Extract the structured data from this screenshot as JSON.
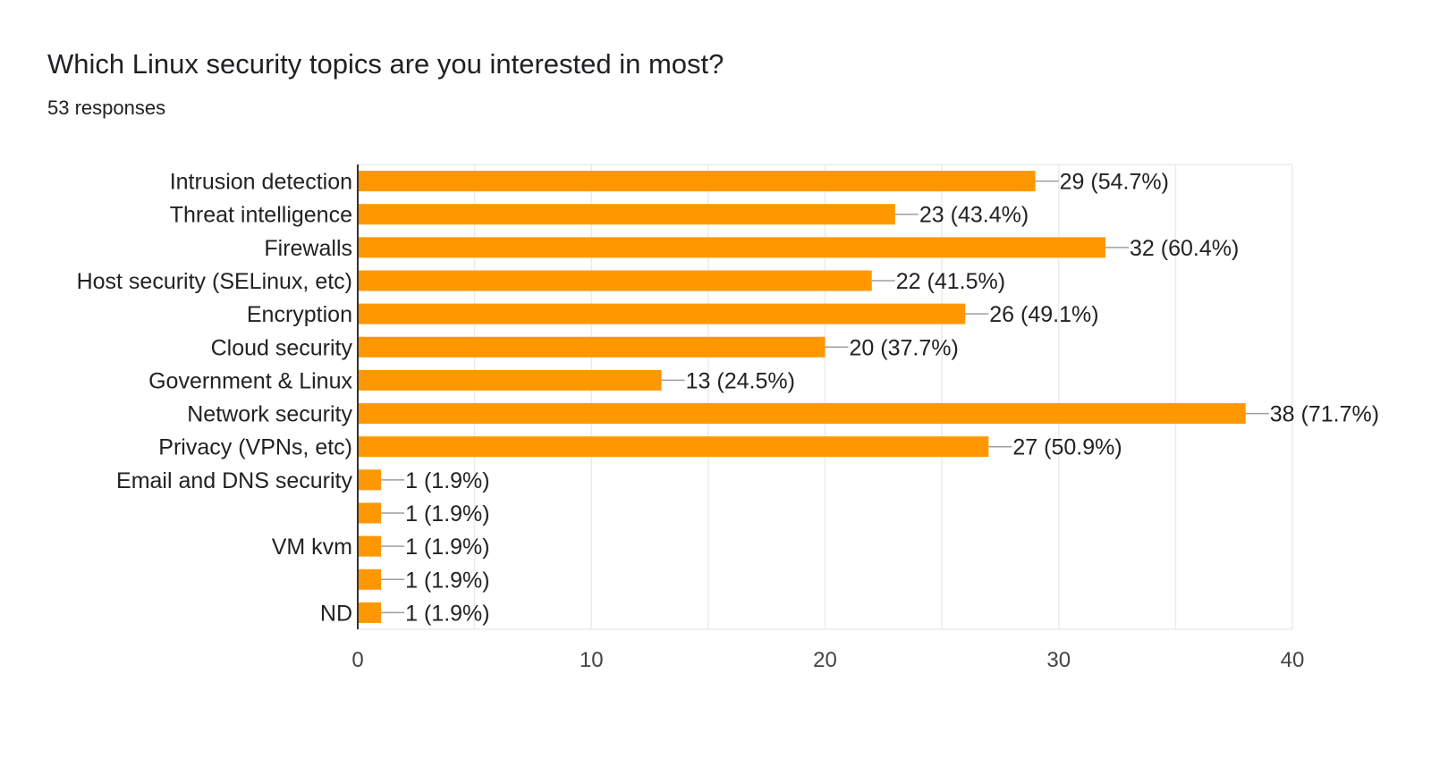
{
  "header": {
    "title": "Which Linux security topics are you interested in most?",
    "subtitle": "53 responses"
  },
  "chart_data": {
    "type": "bar",
    "orientation": "horizontal",
    "categories": [
      "Intrusion detection",
      "Threat intelligence",
      "Firewalls",
      "Host security (SELinux, etc)",
      "Encryption",
      "Cloud security",
      "Government & Linux",
      "Network security",
      "Privacy (VPNs, etc)",
      "Email and DNS security",
      "",
      "VM kvm",
      "",
      "ND"
    ],
    "values": [
      29,
      23,
      32,
      22,
      26,
      20,
      13,
      38,
      27,
      1,
      1,
      1,
      1,
      1
    ],
    "data_labels": [
      "29 (54.7%)",
      "23 (43.4%)",
      "32 (60.4%)",
      "22 (41.5%)",
      "26 (49.1%)",
      "20 (37.7%)",
      "13 (24.5%)",
      "38 (71.7%)",
      "27 (50.9%)",
      "1 (1.9%)",
      "1 (1.9%)",
      "1 (1.9%)",
      "1 (1.9%)",
      "1 (1.9%)"
    ],
    "xlim": [
      0,
      40
    ],
    "xticks": [
      0,
      10,
      20,
      30,
      40
    ],
    "grid": true,
    "bar_color": "#ff9800",
    "grid_color": "#ebebeb",
    "axis_color": "#333333",
    "leader_color": "#9e9e9e"
  }
}
